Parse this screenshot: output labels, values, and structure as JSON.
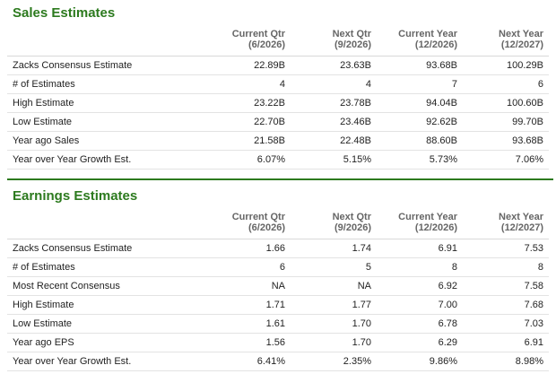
{
  "sales": {
    "title": "Sales Estimates",
    "columns": [
      {
        "l1": "Current Qtr",
        "l2": "(6/2026)"
      },
      {
        "l1": "Next Qtr",
        "l2": "(9/2026)"
      },
      {
        "l1": "Current Year",
        "l2": "(12/2026)"
      },
      {
        "l1": "Next Year",
        "l2": "(12/2027)"
      }
    ],
    "rows": [
      {
        "label": "Zacks Consensus Estimate",
        "values": [
          "22.89B",
          "23.63B",
          "93.68B",
          "100.29B"
        ]
      },
      {
        "label": "# of Estimates",
        "values": [
          "4",
          "4",
          "7",
          "6"
        ]
      },
      {
        "label": "High Estimate",
        "values": [
          "23.22B",
          "23.78B",
          "94.04B",
          "100.60B"
        ]
      },
      {
        "label": "Low Estimate",
        "values": [
          "22.70B",
          "23.46B",
          "92.62B",
          "99.70B"
        ]
      },
      {
        "label": "Year ago Sales",
        "values": [
          "21.58B",
          "22.48B",
          "88.60B",
          "93.68B"
        ]
      },
      {
        "label": "Year over Year Growth Est.",
        "values": [
          "6.07%",
          "5.15%",
          "5.73%",
          "7.06%"
        ]
      }
    ]
  },
  "earnings": {
    "title": "Earnings Estimates",
    "columns": [
      {
        "l1": "Current Qtr",
        "l2": "(6/2026)"
      },
      {
        "l1": "Next Qtr",
        "l2": "(9/2026)"
      },
      {
        "l1": "Current Year",
        "l2": "(12/2026)"
      },
      {
        "l1": "Next Year",
        "l2": "(12/2027)"
      }
    ],
    "rows": [
      {
        "label": "Zacks Consensus Estimate",
        "values": [
          "1.66",
          "1.74",
          "6.91",
          "7.53"
        ]
      },
      {
        "label": "# of Estimates",
        "values": [
          "6",
          "5",
          "8",
          "8"
        ]
      },
      {
        "label": "Most Recent Consensus",
        "values": [
          "NA",
          "NA",
          "6.92",
          "7.58"
        ]
      },
      {
        "label": "High Estimate",
        "values": [
          "1.71",
          "1.77",
          "7.00",
          "7.68"
        ]
      },
      {
        "label": "Low Estimate",
        "values": [
          "1.61",
          "1.70",
          "6.78",
          "7.03"
        ]
      },
      {
        "label": "Year ago EPS",
        "values": [
          "1.56",
          "1.70",
          "6.29",
          "6.91"
        ]
      },
      {
        "label": "Year over Year Growth Est.",
        "values": [
          "6.41%",
          "2.35%",
          "9.86%",
          "8.98%"
        ]
      }
    ]
  },
  "colors": {
    "accent": "#2c7a1e",
    "header_text": "#666666",
    "row_border": "#e3e3e3"
  }
}
